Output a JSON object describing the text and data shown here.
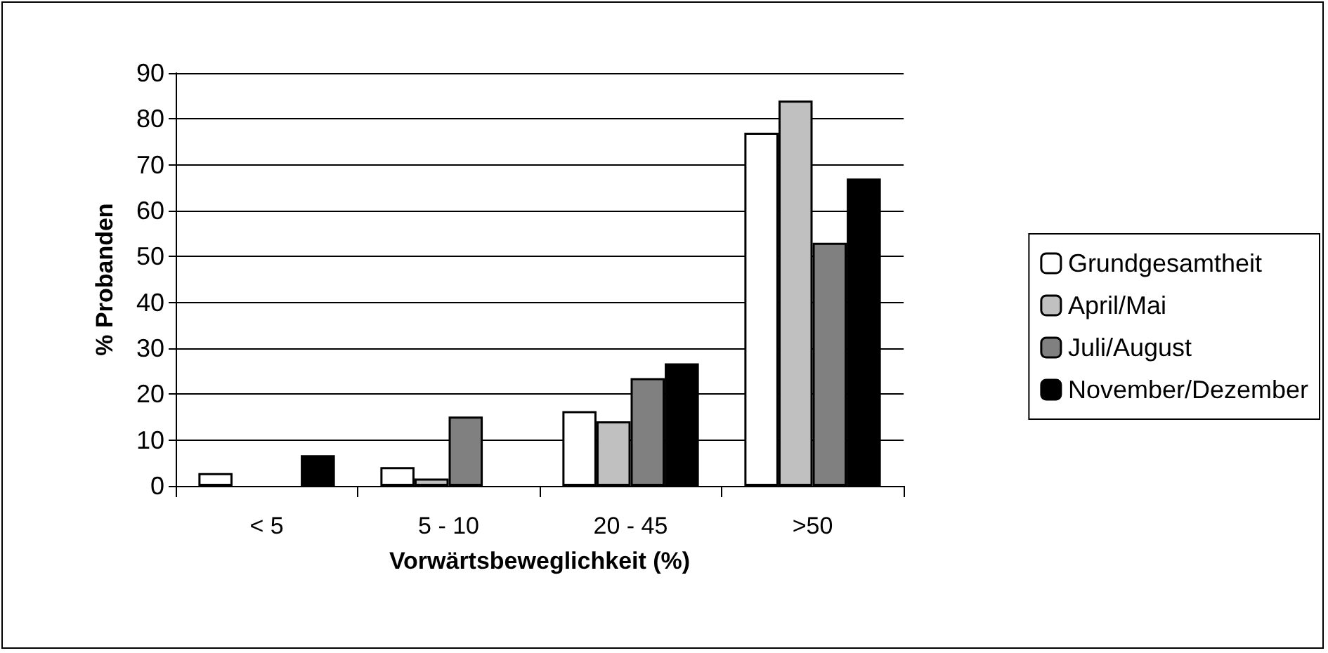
{
  "chart_data": {
    "type": "bar",
    "xlabel": "Vorwärtsbeweglichkeit (%)",
    "ylabel": "% Probanden",
    "categories": [
      "< 5",
      "5 - 10",
      "20 - 45",
      ">50"
    ],
    "series": [
      {
        "name": "Grundgesamtheit",
        "color": "#ffffff",
        "values": [
          2.8,
          4.1,
          16.3,
          77
        ]
      },
      {
        "name": "April/Mai",
        "color": "#c0c0c0",
        "values": [
          null,
          1.6,
          14.1,
          84
        ]
      },
      {
        "name": "Juli/August",
        "color": "#808080",
        "values": [
          null,
          15.1,
          23.5,
          53
        ]
      },
      {
        "name": "November/Dezember",
        "color": "#000000",
        "values": [
          6.7,
          null,
          26.7,
          67
        ]
      }
    ],
    "ylim": [
      0,
      90
    ],
    "yticks": [
      0,
      10,
      20,
      30,
      40,
      50,
      60,
      70,
      80,
      90
    ],
    "grid": "y",
    "legend": "right"
  }
}
